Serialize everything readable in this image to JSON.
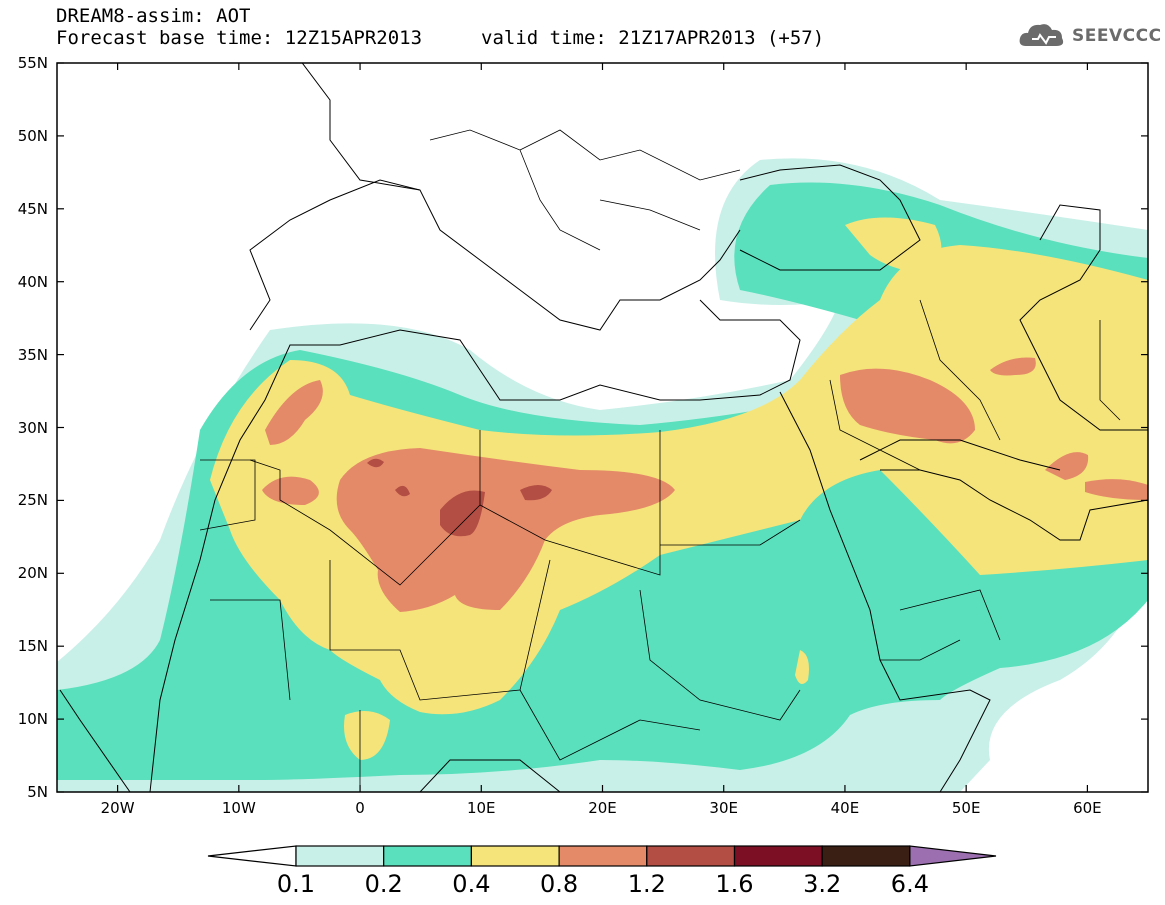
{
  "title": {
    "line1": "DREAM8-assim: AOT",
    "line2_base": "Forecast base time: 12Z15APR2013",
    "line2_valid": "valid time: 21Z17APR2013 (+57)"
  },
  "logo": {
    "text": "SEEVCCC",
    "icon": "cloud-logo-icon"
  },
  "map": {
    "lat_labels": [
      "55N",
      "50N",
      "45N",
      "40N",
      "35N",
      "30N",
      "25N",
      "20N",
      "15N",
      "10N",
      "5N"
    ],
    "lon_labels": [
      "20W",
      "10W",
      "0",
      "10E",
      "20E",
      "30E",
      "40E",
      "50E",
      "60E"
    ],
    "lat_range": [
      5,
      55
    ],
    "lon_range": [
      -25,
      65
    ],
    "coastlines": "black",
    "field": "aerosol optical thickness"
  },
  "colorbar": {
    "levels": [
      "0.1",
      "0.2",
      "0.4",
      "0.8",
      "1.2",
      "1.6",
      "3.2",
      "6.4"
    ],
    "colors": {
      "below": "#ffffff",
      "0.1-0.2": "#c8f0e8",
      "0.2-0.4": "#5ae0bc",
      "0.4-0.8": "#f5e47a",
      "0.8-1.2": "#e48a68",
      "1.2-1.6": "#b24e43",
      "1.6-3.2": "#7d0f24",
      "3.2-6.4": "#3a2014",
      "above": "#9b6fb0"
    }
  }
}
